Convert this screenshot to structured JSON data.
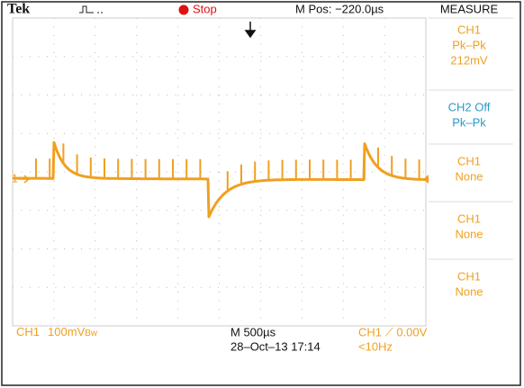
{
  "header": {
    "brand": "Tek",
    "status": "Stop",
    "position": "M Pos: −220.0µs",
    "menu": "MEASURE"
  },
  "measure": [
    {
      "lines": [
        "CH1",
        "Pk–Pk",
        "212mV"
      ]
    },
    {
      "lines": [
        "CH2 Off",
        "Pk–Pk"
      ]
    },
    {
      "lines": [
        "CH1",
        "None"
      ]
    },
    {
      "lines": [
        "CH1",
        "None"
      ]
    },
    {
      "lines": [
        "CH1",
        "None"
      ]
    }
  ],
  "channel_marker": "1",
  "footer": {
    "channel": "CH1",
    "scale": "100mV",
    "bandwidth": "Bw",
    "timebase": "M 500µs",
    "datetime": "28–Oct–13 17:14",
    "trigger": "CH1 ⟋ 0.00V",
    "frequency": "<10Hz"
  }
}
